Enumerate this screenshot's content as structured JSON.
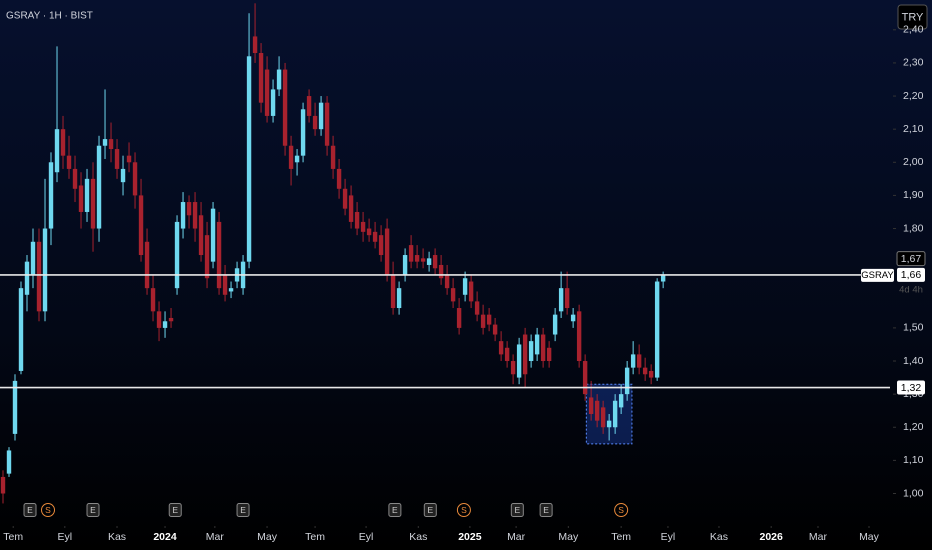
{
  "chart_data": {
    "type": "candlestick",
    "title": "GSRAY · 1H · BIST",
    "currency": "TRY",
    "up_color": "#6fd8ef",
    "down_color": "#a8222e",
    "ylim": [
      0.92,
      2.49
    ],
    "yticks": [
      {
        "value": 1.0,
        "label": "1,00"
      },
      {
        "value": 1.1,
        "label": "1,10"
      },
      {
        "value": 1.2,
        "label": "1,20"
      },
      {
        "value": 1.3,
        "label": "1,30"
      },
      {
        "value": 1.4,
        "label": "1,40"
      },
      {
        "value": 1.5,
        "label": "1,50"
      },
      {
        "value": 1.8,
        "label": "1,80"
      },
      {
        "value": 1.9,
        "label": "1,90"
      },
      {
        "value": 2.0,
        "label": "2,00"
      },
      {
        "value": 2.1,
        "label": "2,10"
      },
      {
        "value": 2.2,
        "label": "2,20"
      },
      {
        "value": 2.3,
        "label": "2,30"
      },
      {
        "value": 2.4,
        "label": "2,40"
      }
    ],
    "xlim": [
      -0.5,
      148.3
    ],
    "xticks": [
      {
        "value": 1.7,
        "label": "Tem"
      },
      {
        "value": 10.3,
        "label": "Eyl"
      },
      {
        "value": 19,
        "label": "Kas"
      },
      {
        "value": 27,
        "label": "2024"
      },
      {
        "value": 35.3,
        "label": "Mar"
      },
      {
        "value": 44,
        "label": "May"
      },
      {
        "value": 52,
        "label": "Tem"
      },
      {
        "value": 60.5,
        "label": "Eyl"
      },
      {
        "value": 69.2,
        "label": "Kas"
      },
      {
        "value": 77.8,
        "label": "2025"
      },
      {
        "value": 85.5,
        "label": "Mar"
      },
      {
        "value": 94.2,
        "label": "May"
      },
      {
        "value": 103,
        "label": "Tem"
      },
      {
        "value": 110.8,
        "label": "Eyl"
      },
      {
        "value": 119.3,
        "label": "Kas"
      },
      {
        "value": 128,
        "label": "2026"
      },
      {
        "value": 135.8,
        "label": "Mar"
      },
      {
        "value": 144.3,
        "label": "May"
      }
    ],
    "ohlc": [
      [
        1.05,
        1.07,
        0.97,
        1.0
      ],
      [
        1.06,
        1.14,
        1.05,
        1.13
      ],
      [
        1.18,
        1.36,
        1.16,
        1.34
      ],
      [
        1.37,
        1.64,
        1.36,
        1.62
      ],
      [
        1.6,
        1.72,
        1.55,
        1.7
      ],
      [
        1.66,
        1.8,
        1.62,
        1.76
      ],
      [
        1.76,
        1.8,
        1.52,
        1.55
      ],
      [
        1.55,
        1.95,
        1.52,
        1.8
      ],
      [
        1.8,
        2.03,
        1.75,
        2.0
      ],
      [
        1.97,
        2.35,
        1.94,
        2.1
      ],
      [
        2.1,
        2.14,
        1.98,
        2.02
      ],
      [
        2.02,
        2.08,
        1.95,
        1.98
      ],
      [
        1.98,
        2.02,
        1.88,
        1.92
      ],
      [
        1.93,
        1.97,
        1.8,
        1.85
      ],
      [
        1.85,
        1.98,
        1.82,
        1.95
      ],
      [
        1.95,
        2.0,
        1.73,
        1.8
      ],
      [
        1.8,
        2.08,
        1.76,
        2.05
      ],
      [
        2.05,
        2.22,
        2.01,
        2.07
      ],
      [
        2.07,
        2.12,
        2.0,
        2.04
      ],
      [
        2.04,
        2.07,
        1.95,
        1.98
      ],
      [
        1.94,
        2.02,
        1.9,
        1.98
      ],
      [
        2.02,
        2.06,
        1.97,
        2.0
      ],
      [
        2.0,
        2.03,
        1.86,
        1.9
      ],
      [
        1.9,
        1.95,
        1.7,
        1.72
      ],
      [
        1.76,
        1.8,
        1.6,
        1.62
      ],
      [
        1.62,
        1.66,
        1.52,
        1.55
      ],
      [
        1.55,
        1.58,
        1.46,
        1.5
      ],
      [
        1.5,
        1.55,
        1.47,
        1.52
      ],
      [
        1.53,
        1.56,
        1.5,
        1.52
      ],
      [
        1.62,
        1.84,
        1.6,
        1.82
      ],
      [
        1.8,
        1.91,
        1.77,
        1.88
      ],
      [
        1.88,
        1.9,
        1.8,
        1.84
      ],
      [
        1.88,
        1.91,
        1.76,
        1.8
      ],
      [
        1.84,
        1.88,
        1.7,
        1.72
      ],
      [
        1.78,
        1.82,
        1.62,
        1.65
      ],
      [
        1.7,
        1.88,
        1.68,
        1.86
      ],
      [
        1.82,
        1.85,
        1.6,
        1.62
      ],
      [
        1.66,
        1.69,
        1.58,
        1.6
      ],
      [
        1.61,
        1.64,
        1.59,
        1.62
      ],
      [
        1.64,
        1.7,
        1.62,
        1.68
      ],
      [
        1.62,
        1.72,
        1.6,
        1.7
      ],
      [
        1.7,
        2.45,
        1.68,
        2.32
      ],
      [
        2.38,
        2.48,
        2.3,
        2.33
      ],
      [
        2.33,
        2.36,
        2.15,
        2.18
      ],
      [
        2.28,
        2.32,
        2.12,
        2.14
      ],
      [
        2.14,
        2.25,
        2.12,
        2.22
      ],
      [
        2.22,
        2.32,
        2.2,
        2.28
      ],
      [
        2.28,
        2.3,
        2.02,
        2.05
      ],
      [
        2.05,
        2.08,
        1.93,
        1.98
      ],
      [
        2.0,
        2.04,
        1.96,
        2.02
      ],
      [
        2.02,
        2.18,
        2.0,
        2.16
      ],
      [
        2.2,
        2.22,
        2.12,
        2.14
      ],
      [
        2.14,
        2.18,
        2.08,
        2.1
      ],
      [
        2.1,
        2.2,
        2.08,
        2.18
      ],
      [
        2.18,
        2.2,
        2.02,
        2.05
      ],
      [
        2.05,
        2.08,
        1.95,
        1.98
      ],
      [
        1.98,
        2.01,
        1.89,
        1.92
      ],
      [
        1.92,
        1.95,
        1.84,
        1.86
      ],
      [
        1.9,
        1.93,
        1.8,
        1.82
      ],
      [
        1.85,
        1.88,
        1.78,
        1.8
      ],
      [
        1.82,
        1.85,
        1.76,
        1.79
      ],
      [
        1.8,
        1.83,
        1.76,
        1.78
      ],
      [
        1.79,
        1.82,
        1.74,
        1.76
      ],
      [
        1.78,
        1.81,
        1.7,
        1.72
      ],
      [
        1.8,
        1.83,
        1.64,
        1.66
      ],
      [
        1.66,
        1.7,
        1.54,
        1.56
      ],
      [
        1.56,
        1.64,
        1.54,
        1.62
      ],
      [
        1.66,
        1.74,
        1.64,
        1.72
      ],
      [
        1.75,
        1.78,
        1.68,
        1.7
      ],
      [
        1.72,
        1.75,
        1.68,
        1.7
      ],
      [
        1.71,
        1.74,
        1.68,
        1.7
      ],
      [
        1.69,
        1.73,
        1.67,
        1.71
      ],
      [
        1.72,
        1.74,
        1.66,
        1.68
      ],
      [
        1.69,
        1.72,
        1.63,
        1.65
      ],
      [
        1.66,
        1.69,
        1.6,
        1.62
      ],
      [
        1.62,
        1.65,
        1.56,
        1.58
      ],
      [
        1.56,
        1.59,
        1.48,
        1.5
      ],
      [
        1.6,
        1.67,
        1.58,
        1.65
      ],
      [
        1.64,
        1.66,
        1.56,
        1.58
      ],
      [
        1.58,
        1.61,
        1.52,
        1.54
      ],
      [
        1.54,
        1.57,
        1.48,
        1.5
      ],
      [
        1.54,
        1.56,
        1.49,
        1.51
      ],
      [
        1.51,
        1.53,
        1.46,
        1.48
      ],
      [
        1.46,
        1.49,
        1.4,
        1.42
      ],
      [
        1.44,
        1.46,
        1.38,
        1.4
      ],
      [
        1.4,
        1.42,
        1.33,
        1.36
      ],
      [
        1.35,
        1.47,
        1.33,
        1.45
      ],
      [
        1.48,
        1.5,
        1.32,
        1.36
      ],
      [
        1.4,
        1.48,
        1.38,
        1.46
      ],
      [
        1.42,
        1.5,
        1.4,
        1.48
      ],
      [
        1.48,
        1.5,
        1.38,
        1.4
      ],
      [
        1.44,
        1.46,
        1.38,
        1.4
      ],
      [
        1.48,
        1.56,
        1.46,
        1.54
      ],
      [
        1.55,
        1.67,
        1.53,
        1.62
      ],
      [
        1.62,
        1.67,
        1.54,
        1.56
      ],
      [
        1.52,
        1.56,
        1.5,
        1.54
      ],
      [
        1.55,
        1.57,
        1.38,
        1.4
      ],
      [
        1.4,
        1.42,
        1.28,
        1.3
      ],
      [
        1.29,
        1.34,
        1.22,
        1.24
      ],
      [
        1.28,
        1.3,
        1.2,
        1.22
      ],
      [
        1.26,
        1.28,
        1.18,
        1.2
      ],
      [
        1.2,
        1.24,
        1.16,
        1.22
      ],
      [
        1.2,
        1.3,
        1.18,
        1.28
      ],
      [
        1.26,
        1.33,
        1.24,
        1.3
      ],
      [
        1.3,
        1.4,
        1.28,
        1.38
      ],
      [
        1.38,
        1.46,
        1.36,
        1.42
      ],
      [
        1.42,
        1.45,
        1.36,
        1.38
      ],
      [
        1.38,
        1.41,
        1.34,
        1.36
      ],
      [
        1.37,
        1.39,
        1.33,
        1.35
      ],
      [
        1.35,
        1.65,
        1.34,
        1.64
      ],
      [
        1.64,
        1.67,
        1.62,
        1.66
      ]
    ],
    "price_lines": [
      {
        "value": 1.66,
        "label": "1,66",
        "name": "GSRAY",
        "countdown": "4d 4h"
      },
      {
        "value": 1.32,
        "label": "1,32"
      }
    ],
    "high_marker": {
      "value": 1.67,
      "label": "1,67"
    },
    "highlight": {
      "x": [
        97.2,
        104.8
      ],
      "y": [
        1.15,
        1.33
      ]
    },
    "events": [
      {
        "x": 4.5,
        "label": "E"
      },
      {
        "x": 7.5,
        "label": "S"
      },
      {
        "x": 15,
        "label": "E"
      },
      {
        "x": 28.7,
        "label": "E"
      },
      {
        "x": 40,
        "label": "E"
      },
      {
        "x": 65.3,
        "label": "E"
      },
      {
        "x": 71.2,
        "label": "E"
      },
      {
        "x": 76.8,
        "label": "S"
      },
      {
        "x": 85.7,
        "label": "E"
      },
      {
        "x": 90.5,
        "label": "E"
      },
      {
        "x": 103,
        "label": "S"
      }
    ]
  }
}
